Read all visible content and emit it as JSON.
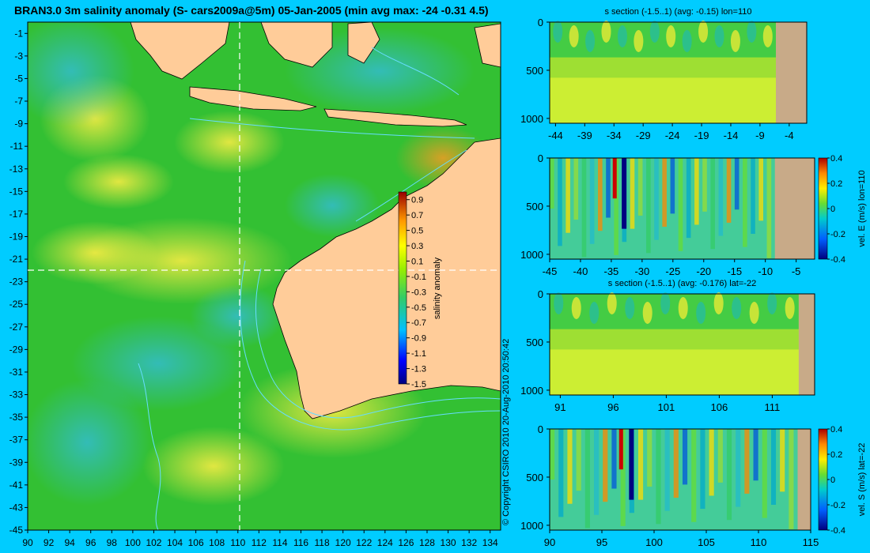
{
  "main_map": {
    "title": "BRAN3.0 3m salinity anomaly (S- cars2009a@5m) 05-Jan-2005 (min avg max: -24 -0.31 4.5)",
    "x_ticks": [
      "90",
      "92",
      "94",
      "96",
      "98",
      "100",
      "102",
      "104",
      "106",
      "108",
      "110",
      "112",
      "114",
      "116",
      "118",
      "120",
      "122",
      "124",
      "126",
      "128",
      "130",
      "132",
      "134"
    ],
    "y_ticks": [
      "-1",
      "-3",
      "-5",
      "-7",
      "-9",
      "-11",
      "-13",
      "-15",
      "-17",
      "-19",
      "-21",
      "-23",
      "-25",
      "-27",
      "-29",
      "-31",
      "-33",
      "-35",
      "-37",
      "-39",
      "-41",
      "-43",
      "-45"
    ],
    "colorbar": {
      "label": "salinity anomaly",
      "ticks": [
        "0.9",
        "0.7",
        "0.5",
        "0.3",
        "0.1",
        "-0.1",
        "-0.3",
        "-0.5",
        "-0.7",
        "-0.9",
        "-1.1",
        "-1.3",
        "-1.5"
      ]
    },
    "copyright": "© Copyright CSIRO 2010   20-Aug-2010 20:50:42",
    "colors": {
      "ocean": "#33c033",
      "land": "#ffcc99",
      "background": "#00ccff"
    }
  },
  "panels": [
    {
      "title": "s section (-1.5..1) (avg: -0.15) lon=110",
      "x_ticks": [
        "-44",
        "-39",
        "-34",
        "-29",
        "-24",
        "-19",
        "-14",
        "-9",
        "-4"
      ],
      "y_ticks": [
        "0",
        "500",
        "1000"
      ],
      "colorbar": null
    },
    {
      "title": "",
      "x_ticks": [
        "-45",
        "-40",
        "-35",
        "-30",
        "-25",
        "-20",
        "-15",
        "-10",
        "-5"
      ],
      "y_ticks": [
        "0",
        "500",
        "1000"
      ],
      "colorbar": {
        "label": "vel. E (m/s) lon=110",
        "ticks": [
          "0.4",
          "0.2",
          "0",
          "-0.2",
          "-0.4"
        ]
      }
    },
    {
      "title": "s section (-1.5..1) (avg: -0.176) lat=-22",
      "x_ticks": [
        "91",
        "96",
        "101",
        "106",
        "111"
      ],
      "y_ticks": [
        "0",
        "500",
        "1000"
      ],
      "colorbar": null
    },
    {
      "title": "",
      "x_ticks": [
        "90",
        "95",
        "100",
        "105",
        "110",
        "115"
      ],
      "y_ticks": [
        "0",
        "500",
        "1000"
      ],
      "colorbar": {
        "label": "vel. S (m/s) lat=-22",
        "ticks": [
          "0.4",
          "0.2",
          "0",
          "-0.2",
          "-0.4"
        ]
      }
    }
  ],
  "chart_data": [
    {
      "type": "heatmap",
      "title": "BRAN3.0 3m salinity anomaly (S- cars2009a@5m) 05-Jan-2005 (min avg max: -24 -0.31 4.5)",
      "xlim": [
        90,
        135
      ],
      "ylim": [
        -45,
        0
      ],
      "color_range": [
        -1.5,
        1.0
      ],
      "colorbar_label": "salinity anomaly",
      "section_lines": {
        "lon": 110,
        "lat": -22
      },
      "stats": {
        "min": -24,
        "avg": -0.31,
        "max": 4.5
      }
    },
    {
      "type": "heatmap",
      "title": "s section (-1.5..1) (avg: -0.15) lon=110",
      "xlim": [
        -45,
        -1
      ],
      "ylim": [
        1050,
        0
      ],
      "color_range": [
        -1.5,
        1.0
      ],
      "avg": -0.15
    },
    {
      "type": "heatmap",
      "title": "",
      "xlim": [
        -45,
        -2
      ],
      "ylim": [
        1050,
        0
      ],
      "color_range": [
        -0.4,
        0.4
      ],
      "colorbar_label": "vel. E (m/s) lon=110"
    },
    {
      "type": "heatmap",
      "title": "s section (-1.5..1) (avg: -0.176) lat=-22",
      "xlim": [
        90,
        115
      ],
      "ylim": [
        1050,
        0
      ],
      "color_range": [
        -1.5,
        1.0
      ],
      "avg": -0.176
    },
    {
      "type": "heatmap",
      "title": "",
      "xlim": [
        90,
        115
      ],
      "ylim": [
        1050,
        0
      ],
      "color_range": [
        -0.4,
        0.4
      ],
      "colorbar_label": "vel. S (m/s) lat=-22"
    }
  ]
}
